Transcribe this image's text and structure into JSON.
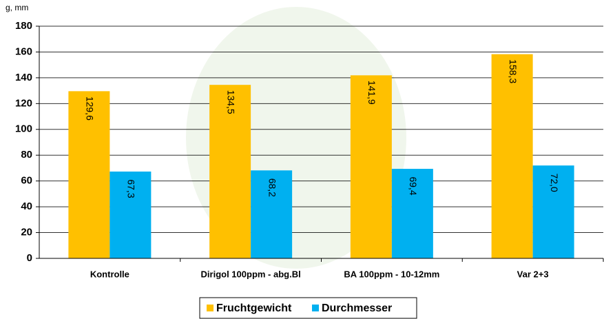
{
  "chart_data": {
    "type": "bar",
    "y_label": "g, mm",
    "categories": [
      "Kontrolle",
      "Dirigol 100ppm - abg.Bl",
      "BA 100ppm - 10-12mm",
      "Var 2+3"
    ],
    "series": [
      {
        "name": "Fruchtgewicht",
        "color": "#FFC000",
        "values": [
          129.6,
          134.5,
          141.9,
          158.3
        ],
        "value_labels": [
          "129,6",
          "134,5",
          "141,9",
          "158,3"
        ]
      },
      {
        "name": "Durchmesser",
        "color": "#00B0F0",
        "values": [
          67.3,
          68.2,
          69.4,
          72.0
        ],
        "value_labels": [
          "67,3",
          "68,2",
          "69,4",
          "72,0"
        ]
      }
    ],
    "ylim": [
      0,
      180
    ],
    "yticks": [
      0,
      20,
      40,
      60,
      80,
      100,
      120,
      140,
      160,
      180
    ],
    "grid": true,
    "legend": "bottom"
  }
}
